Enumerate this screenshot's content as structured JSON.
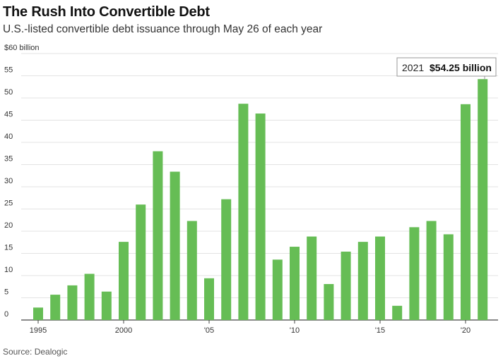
{
  "header": {
    "title": "The Rush Into Convertible Debt",
    "subtitle": "U.S.-listed convertible debt issuance through May 26 of each year"
  },
  "footer": {
    "source": "Source: Dealogic"
  },
  "tooltip": {
    "year": "2021",
    "value": "$54.25 billion"
  },
  "colors": {
    "bar": "#66bd55",
    "grid": "#e3e3e3",
    "axis": "#444444"
  },
  "chart_data": {
    "type": "bar",
    "title": "The Rush Into Convertible Debt",
    "subtitle": "U.S.-listed convertible debt issuance through May 26 of each year",
    "xlabel": "",
    "ylabel": "",
    "categories": [
      1995,
      1996,
      1997,
      1998,
      1999,
      2000,
      2001,
      2002,
      2003,
      2004,
      2005,
      2006,
      2007,
      2008,
      2009,
      2010,
      2011,
      2012,
      2013,
      2014,
      2015,
      2016,
      2017,
      2018,
      2019,
      2020,
      2021
    ],
    "values": [
      2.8,
      5.7,
      7.8,
      10.4,
      6.4,
      17.6,
      26,
      38,
      33.4,
      22.3,
      9.4,
      27.2,
      48.7,
      46.5,
      13.6,
      16.5,
      18.8,
      8.1,
      15.4,
      17.6,
      18.8,
      3.2,
      20.9,
      22.3,
      19.3,
      48.6,
      54.25
    ],
    "ylim": [
      0,
      60
    ],
    "y_ticks": [
      "0",
      "5",
      "10",
      "15",
      "20",
      "25",
      "30",
      "35",
      "40",
      "45",
      "50",
      "55",
      "$60 billion"
    ],
    "x_ticks": [
      {
        "year": 1995,
        "label": "1995"
      },
      {
        "year": 2000,
        "label": "2000"
      },
      {
        "year": 2005,
        "label": "'05"
      },
      {
        "year": 2010,
        "label": "'10"
      },
      {
        "year": 2015,
        "label": "'15"
      },
      {
        "year": 2020,
        "label": "'20"
      }
    ],
    "grid": true,
    "highlight": {
      "category": 2021,
      "value": 54.25,
      "label": "$54.25 billion"
    }
  }
}
